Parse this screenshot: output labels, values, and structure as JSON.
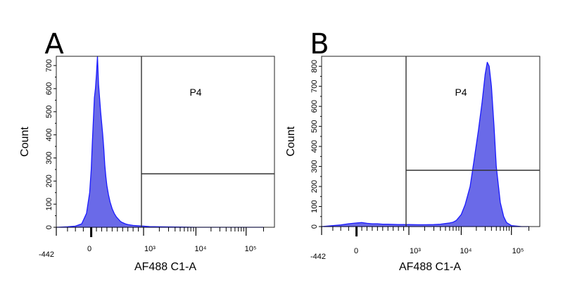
{
  "chart_data": [
    {
      "type": "histogram",
      "panel": "A",
      "xlabel": "AF488 C1-A",
      "ylabel": "Count",
      "x_scale": "biexponential",
      "x_tick_labels": [
        "-442",
        "0",
        "10³",
        "10⁴",
        "10⁵"
      ],
      "y_ticks": [
        0,
        100,
        200,
        300,
        400,
        500,
        600,
        700
      ],
      "ylim": [
        0,
        740
      ],
      "gate": {
        "name": "P4",
        "x_start": 600
      },
      "fill_color": "#6a6ae8",
      "line_color": "#1a1aff",
      "x": [
        -442,
        -300,
        -200,
        -120,
        -60,
        -20,
        0,
        20,
        40,
        60,
        80,
        100,
        120,
        140,
        160,
        180,
        200,
        220,
        240,
        260,
        280,
        300,
        330,
        360,
        400,
        440,
        480,
        520,
        560,
        600,
        650,
        700,
        800,
        1000,
        1300,
        2000,
        5000,
        10000,
        50000,
        100000,
        200000
      ],
      "values": [
        0,
        2,
        5,
        15,
        60,
        150,
        250,
        360,
        460,
        560,
        600,
        660,
        740,
        620,
        560,
        500,
        450,
        400,
        340,
        270,
        220,
        180,
        140,
        110,
        80,
        60,
        45,
        35,
        25,
        20,
        15,
        12,
        8,
        5,
        3,
        2,
        1,
        0,
        0,
        0,
        0
      ]
    },
    {
      "type": "histogram",
      "panel": "B",
      "xlabel": "AF488 C1-A",
      "ylabel": "Count",
      "x_scale": "biexponential",
      "x_tick_labels": [
        "-442",
        "0",
        "10³",
        "10⁴",
        "10⁵"
      ],
      "y_ticks": [
        0,
        100,
        200,
        300,
        400,
        500,
        600,
        700,
        800
      ],
      "ylim": [
        0,
        850
      ],
      "gate": {
        "name": "P4",
        "x_start": 600
      },
      "fill_color": "#6a6ae8",
      "line_color": "#1a1aff",
      "x": [
        -442,
        -200,
        -100,
        0,
        100,
        200,
        300,
        400,
        500,
        600,
        800,
        1000,
        1500,
        2000,
        3000,
        4000,
        5000,
        6000,
        7000,
        8000,
        10000,
        12000,
        15000,
        18000,
        22000,
        26000,
        30000,
        33000,
        36000,
        40000,
        45000,
        50000,
        60000,
        70000,
        80000,
        100000,
        150000,
        200000
      ],
      "values": [
        0,
        8,
        14,
        18,
        20,
        16,
        14,
        14,
        12,
        12,
        10,
        10,
        9,
        9,
        10,
        12,
        15,
        18,
        22,
        30,
        60,
        110,
        200,
        330,
        480,
        620,
        760,
        820,
        800,
        700,
        500,
        300,
        120,
        50,
        20,
        5,
        0,
        0
      ]
    }
  ]
}
